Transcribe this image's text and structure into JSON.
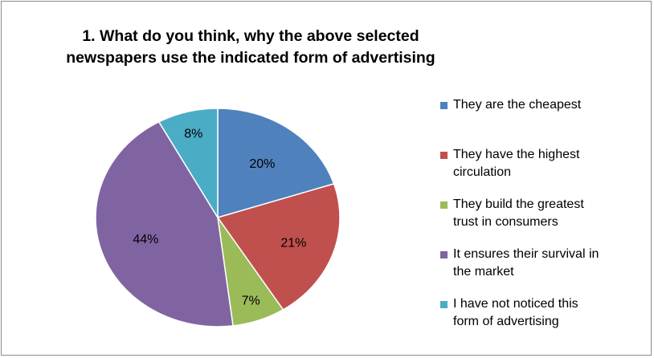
{
  "chart_data": {
    "type": "pie",
    "title_lines": [
      "1. What do you think, why the above selected",
      "newspapers use the indicated form of advertising"
    ],
    "legend_position": "right",
    "slices": [
      {
        "label_lines": [
          "They are the cheapest"
        ],
        "value": 20,
        "value_label": "20%",
        "color": "#4f81bd"
      },
      {
        "label_lines": [
          "They have the highest",
          "circulation"
        ],
        "value": 21,
        "value_label": "21%",
        "color": "#c0504d"
      },
      {
        "label_lines": [
          "They build the greatest",
          "trust in consumers"
        ],
        "value": 7,
        "value_label": "7%",
        "color": "#9bbb59"
      },
      {
        "label_lines": [
          "It ensures their survival in",
          "the market"
        ],
        "value": 44,
        "value_label": "44%",
        "color": "#8064a2"
      },
      {
        "label_lines": [
          "I have not noticed this",
          "form of advertising"
        ],
        "value": 8,
        "value_label": "8%",
        "color": "#4bacc6"
      }
    ]
  }
}
